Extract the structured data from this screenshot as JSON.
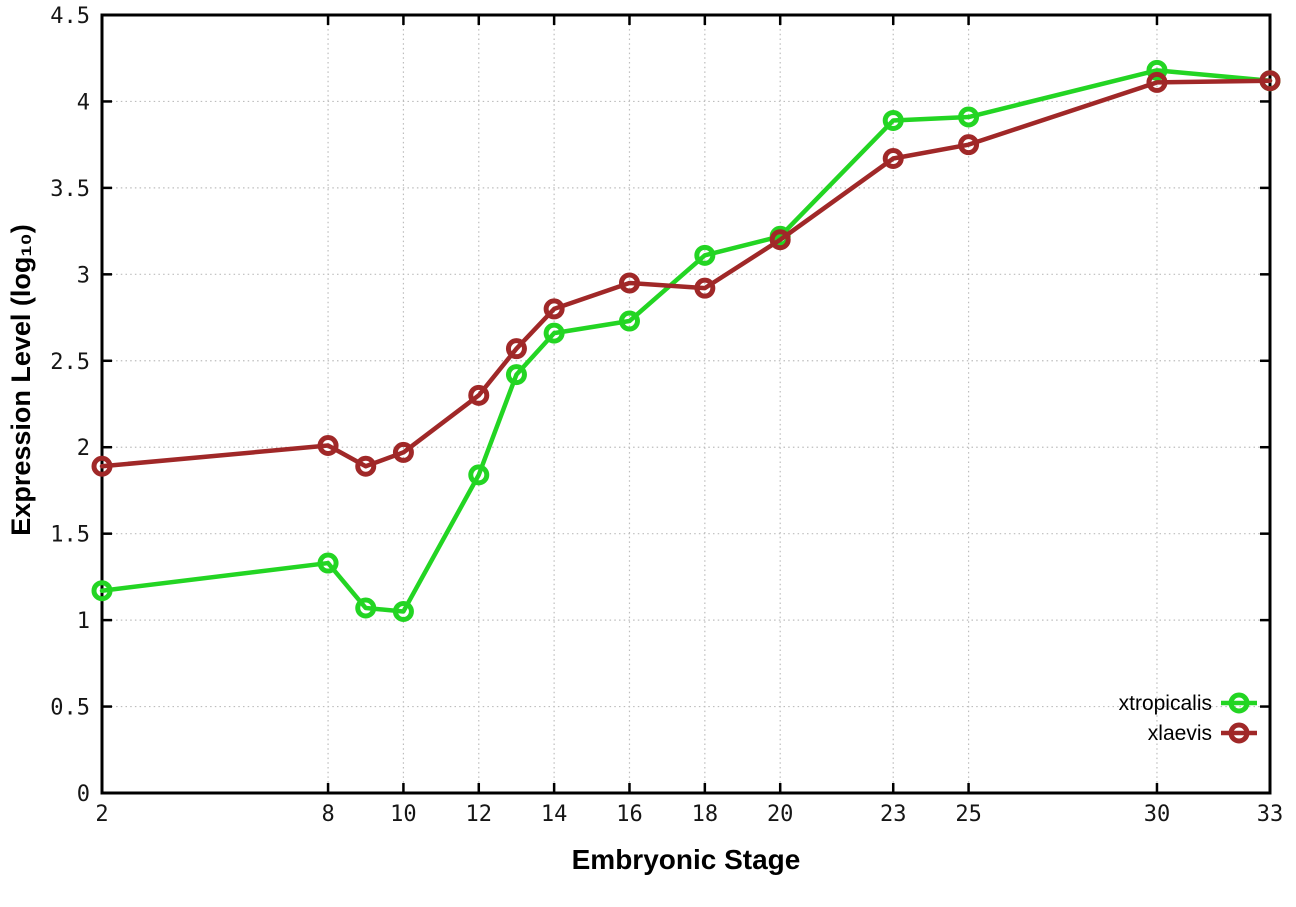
{
  "figure": {
    "background": "#ffffff",
    "frame_color": "#000000",
    "grid_color": "#bdbdbd",
    "tick_label_color": "#161616"
  },
  "chart_data": {
    "type": "line",
    "title": "",
    "xlabel": "Embryonic Stage",
    "ylabel": "Expression Level (log₁₀)",
    "xlim": [
      2,
      33
    ],
    "ylim": [
      0,
      4.5
    ],
    "grid": true,
    "legend_position": "inside-bottom-right",
    "x": [
      2,
      8,
      9,
      10,
      12,
      13,
      14,
      16,
      18,
      20,
      23,
      25,
      30,
      33
    ],
    "xticks": [
      2,
      8,
      10,
      12,
      14,
      16,
      18,
      20,
      23,
      25,
      30,
      33
    ],
    "xtick_labels": [
      "2",
      "8",
      "10",
      "12",
      "14",
      "16",
      "18",
      "20",
      "23",
      "25",
      "30",
      "33"
    ],
    "yticks": [
      0,
      0.5,
      1,
      1.5,
      2,
      2.5,
      3,
      3.5,
      4,
      4.5
    ],
    "ytick_labels": [
      "0",
      "0.5",
      "1",
      "1.5",
      "2",
      "2.5",
      "3",
      "3.5",
      "4",
      "4.5"
    ],
    "series": [
      {
        "name": "xtropicalis",
        "color": "#23d523",
        "marker": "open-circle",
        "values": [
          1.17,
          1.33,
          1.07,
          1.05,
          1.84,
          2.42,
          2.66,
          2.73,
          3.11,
          3.22,
          3.89,
          3.91,
          4.18,
          4.12
        ]
      },
      {
        "name": "xlaevis",
        "color": "#a02828",
        "marker": "open-circle",
        "values": [
          1.89,
          2.01,
          1.89,
          1.97,
          2.3,
          2.57,
          2.8,
          2.95,
          2.92,
          3.2,
          3.67,
          3.75,
          4.11,
          4.12
        ]
      }
    ]
  }
}
